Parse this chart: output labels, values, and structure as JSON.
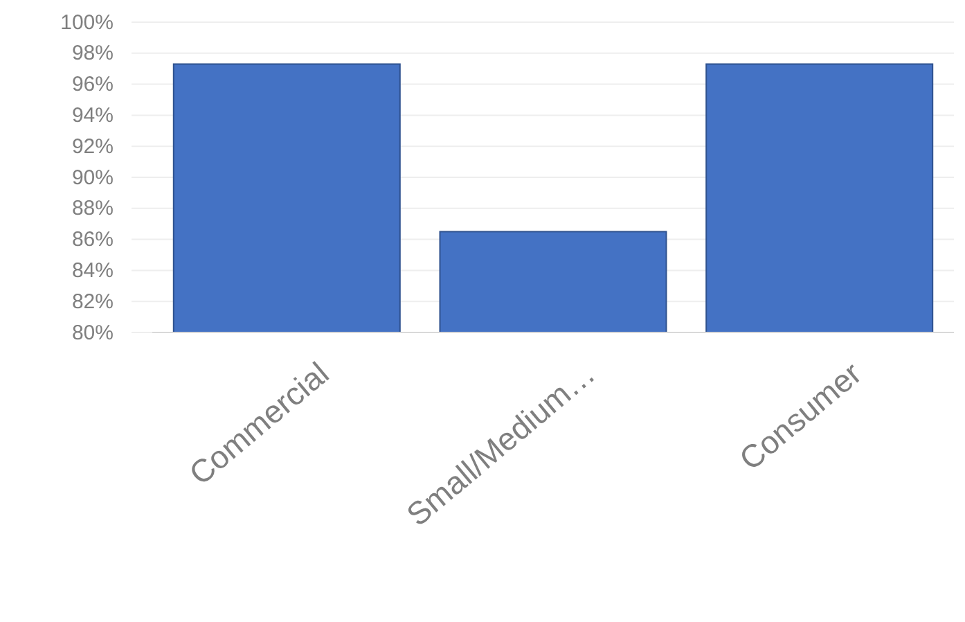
{
  "chart_data": {
    "type": "bar",
    "categories": [
      "Commercial",
      "Small/Medium…",
      "Consumer"
    ],
    "values": [
      97.3,
      86.5,
      97.3
    ],
    "color": "#4472c4",
    "ylim": [
      80,
      100
    ],
    "yticks": [
      {
        "value": 80,
        "label": "80%"
      },
      {
        "value": 82,
        "label": "82%"
      },
      {
        "value": 84,
        "label": "84%"
      },
      {
        "value": 86,
        "label": "86%"
      },
      {
        "value": 88,
        "label": "88%"
      },
      {
        "value": 90,
        "label": "90%"
      },
      {
        "value": 92,
        "label": "92%"
      },
      {
        "value": 94,
        "label": "94%"
      },
      {
        "value": 96,
        "label": "96%"
      },
      {
        "value": 98,
        "label": "98%"
      },
      {
        "value": 100,
        "label": "100%"
      }
    ],
    "grid": "y"
  }
}
